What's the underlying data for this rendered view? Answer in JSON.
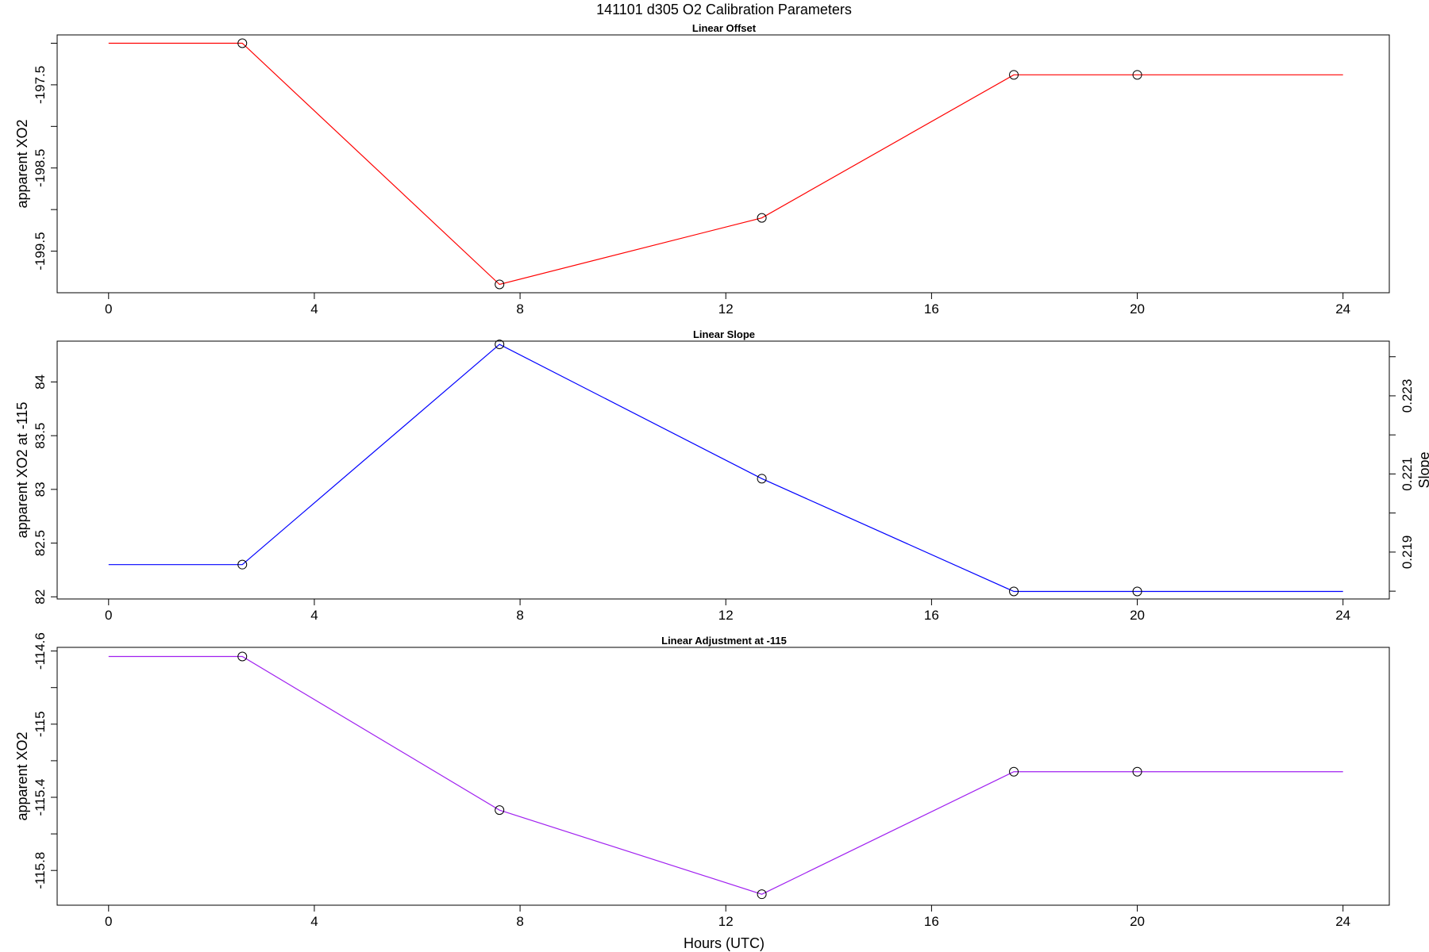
{
  "title": "141101   d305   O2 Calibration Parameters",
  "xlabel": "Hours (UTC)",
  "chart_data": [
    {
      "type": "line",
      "title": "Linear Offset",
      "xlabel": "",
      "ylabel": "apparent XO2",
      "xlim": [
        -1.0,
        24.9
      ],
      "ylim": [
        -200.0,
        -196.9
      ],
      "xticks": [
        0,
        4,
        8,
        12,
        16,
        20,
        24
      ],
      "yticks": [
        -199.5,
        -198.5,
        -197.5
      ],
      "yticks_minor": [
        -199.0,
        -198.0,
        -197.0
      ],
      "x": [
        0,
        2.6,
        7.6,
        12.7,
        17.6,
        20.0,
        24.0
      ],
      "series": [
        {
          "values": [
            -197.0,
            -197.0,
            -199.9,
            -199.1,
            -197.38,
            -197.38,
            -197.38
          ],
          "color": "#ff0000"
        }
      ],
      "markers_at": [
        2.6,
        7.6,
        12.7,
        17.6,
        20.0
      ]
    },
    {
      "type": "line",
      "title": "Linear Slope",
      "xlabel": "",
      "ylabel": "apparent XO2 at -115",
      "ylabel_right": "Slope",
      "xlim": [
        -1.0,
        24.9
      ],
      "ylim": [
        81.98,
        84.38
      ],
      "xticks": [
        0,
        4,
        8,
        12,
        16,
        20,
        24
      ],
      "yticks": [
        82.0,
        82.5,
        83.0,
        83.5,
        84.0
      ],
      "yticks_right": [
        0.219,
        0.221,
        0.223
      ],
      "yticks_right_minor": [
        0.218,
        0.22,
        0.222,
        0.224
      ],
      "ylim_right": [
        0.2178,
        0.2244
      ],
      "x": [
        0,
        2.6,
        7.6,
        12.7,
        17.6,
        20.0,
        24.0
      ],
      "series": [
        {
          "values": [
            82.3,
            82.3,
            84.35,
            83.1,
            82.05,
            82.05,
            82.05
          ],
          "color": "#0000ff"
        }
      ],
      "markers_at": [
        2.6,
        7.6,
        12.7,
        17.6,
        20.0
      ]
    },
    {
      "type": "line",
      "title": "Linear Adjustment at -115",
      "xlabel": "Hours (UTC)",
      "ylabel": "apparent XO2",
      "xlim": [
        -1.0,
        24.9
      ],
      "ylim": [
        -115.99,
        -114.58
      ],
      "xticks": [
        0,
        4,
        8,
        12,
        16,
        20,
        24
      ],
      "yticks": [
        -115.8,
        -115.4,
        -115.0,
        -114.6
      ],
      "yticks_minor": [
        -115.6,
        -115.2,
        -114.8
      ],
      "x": [
        0,
        2.6,
        7.6,
        12.7,
        17.6,
        20.0,
        24.0
      ],
      "series": [
        {
          "values": [
            -114.63,
            -114.63,
            -115.47,
            -115.93,
            -115.26,
            -115.26,
            -115.26
          ],
          "color": "#a020f0"
        }
      ],
      "markers_at": [
        2.6,
        7.6,
        12.7,
        17.6,
        20.0
      ]
    }
  ]
}
